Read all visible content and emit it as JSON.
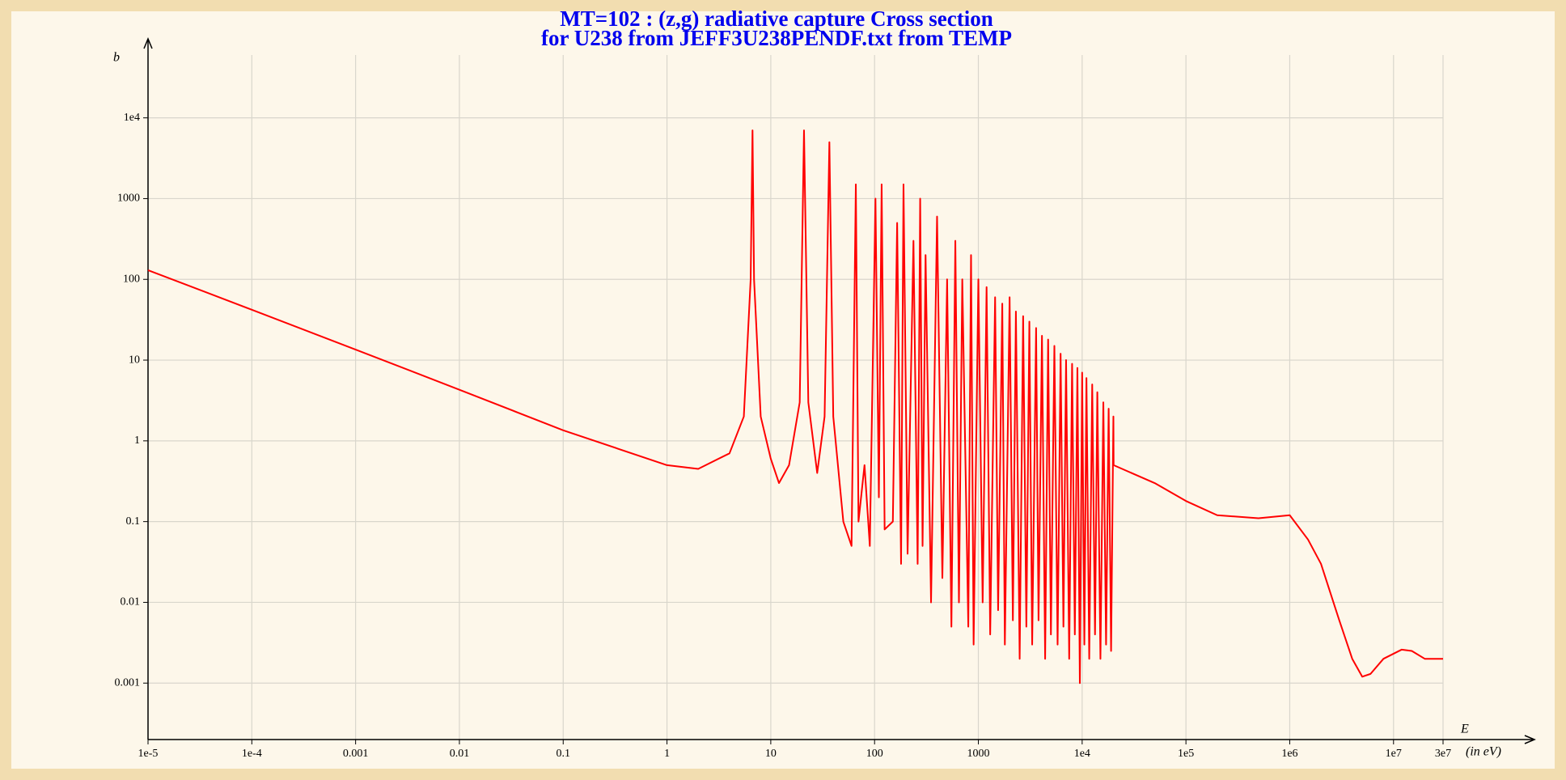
{
  "chart_data": {
    "type": "line",
    "title": "MT=102 : (z,g) radiative capture Cross section",
    "subtitle": "for U238 from JEFF3U238PENDF.txt from TEMP",
    "y_label": "b",
    "x_label": "E",
    "x_unit_label": "(in eV)",
    "log_x": true,
    "log_y": true,
    "grid": true,
    "xlim": [
      1e-05,
      30000000
    ],
    "ylim": [
      0.0002,
      60000
    ],
    "xticks": [
      {
        "value": 1e-05,
        "label": "1e-5"
      },
      {
        "value": 0.0001,
        "label": "1e-4"
      },
      0.001,
      0.01,
      0.1,
      1,
      10,
      100,
      1000,
      {
        "value": 10000,
        "label": "1e4"
      },
      {
        "value": 100000,
        "label": "1e5"
      },
      {
        "value": 1000000,
        "label": "1e6"
      },
      {
        "value": 10000000,
        "label": "1e7"
      },
      {
        "value": 30000000,
        "label": "3e7"
      }
    ],
    "yticks": [
      0.001,
      0.01,
      0.1,
      1,
      10,
      100,
      1000,
      {
        "value": 10000,
        "label": "1e4"
      }
    ],
    "series": [
      {
        "color": "#ff0000",
        "x": [
          1e-05,
          0.0001,
          0.001,
          0.01,
          0.1,
          1,
          2,
          4,
          5.5,
          6.4,
          6.67,
          6.9,
          8,
          10,
          12,
          15,
          19,
          20.9,
          23,
          28,
          33,
          36.7,
          40,
          50,
          60,
          66,
          70,
          80,
          90,
          102,
          110,
          117,
          125,
          150,
          165,
          180,
          190,
          208,
          237,
          260,
          275,
          290,
          310,
          350,
          400,
          450,
          500,
          550,
          600,
          650,
          700,
          800,
          850,
          900,
          1000,
          1100,
          1200,
          1300,
          1450,
          1550,
          1700,
          1800,
          2000,
          2150,
          2300,
          2500,
          2700,
          2900,
          3100,
          3300,
          3600,
          3800,
          4100,
          4400,
          4700,
          5000,
          5400,
          5800,
          6200,
          6600,
          7000,
          7500,
          8000,
          8500,
          9000,
          9500,
          10000,
          10500,
          11000,
          11700,
          12500,
          13300,
          14000,
          15000,
          16000,
          17000,
          18000,
          19000,
          20000,
          20100,
          50000,
          100000,
          200000,
          500000,
          1000000,
          1500000,
          2000000,
          3000000,
          4000000,
          5000000,
          6000000,
          8000000,
          12000000,
          15000000,
          20000000,
          30000000
        ],
        "values": [
          130,
          42,
          13.5,
          4.3,
          1.35,
          0.5,
          0.45,
          0.7,
          2,
          100,
          7000,
          100,
          2,
          0.6,
          0.3,
          0.5,
          3,
          7000,
          3,
          0.4,
          2,
          5000,
          2,
          0.1,
          0.05,
          1500,
          0.1,
          0.5,
          0.05,
          1000,
          0.2,
          1500,
          0.08,
          0.1,
          500,
          0.03,
          1500,
          0.04,
          300,
          0.03,
          1000,
          0.05,
          200,
          0.01,
          600,
          0.02,
          100,
          0.005,
          300,
          0.01,
          100,
          0.005,
          200,
          0.003,
          100,
          0.01,
          80,
          0.004,
          60,
          0.008,
          50,
          0.003,
          60,
          0.006,
          40,
          0.002,
          35,
          0.005,
          30,
          0.003,
          25,
          0.006,
          20,
          0.002,
          18,
          0.004,
          15,
          0.003,
          12,
          0.005,
          10,
          0.002,
          9,
          0.004,
          8,
          0.001,
          7,
          0.003,
          6,
          0.002,
          5,
          0.004,
          4,
          0.002,
          3,
          0.003,
          2.5,
          0.0025,
          2,
          0.5,
          0.3,
          0.18,
          0.12,
          0.11,
          0.12,
          0.06,
          0.03,
          0.006,
          0.002,
          0.0012,
          0.0013,
          0.002,
          0.0026,
          0.0025,
          0.002,
          0.002
        ]
      }
    ]
  }
}
